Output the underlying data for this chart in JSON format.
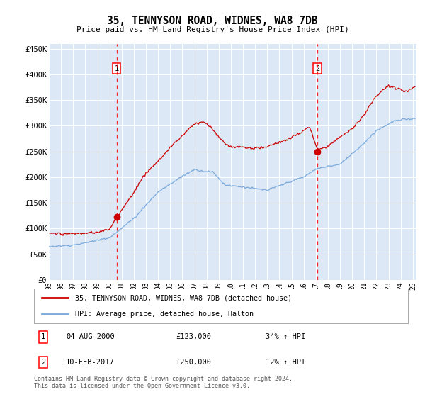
{
  "title": "35, TENNYSON ROAD, WIDNES, WA8 7DB",
  "subtitle": "Price paid vs. HM Land Registry's House Price Index (HPI)",
  "ylabel_ticks": [
    "£0",
    "£50K",
    "£100K",
    "£150K",
    "£200K",
    "£250K",
    "£300K",
    "£350K",
    "£400K",
    "£450K"
  ],
  "ytick_values": [
    0,
    50000,
    100000,
    150000,
    200000,
    250000,
    300000,
    350000,
    400000,
    450000
  ],
  "ylim": [
    0,
    460000
  ],
  "xlim_start": 1995.0,
  "xlim_end": 2025.3,
  "plot_bg": "#dce8f5",
  "red_color": "#cc0000",
  "blue_color": "#7aaadd",
  "legend_label_red": "35, TENNYSON ROAD, WIDNES, WA8 7DB (detached house)",
  "legend_label_blue": "HPI: Average price, detached house, Halton",
  "sale1_date": "04-AUG-2000",
  "sale1_price": "£123,000",
  "sale1_hpi": "34% ↑ HPI",
  "sale1_x": 2000.58,
  "sale1_y": 123000,
  "sale2_date": "10-FEB-2017",
  "sale2_price": "£250,000",
  "sale2_hpi": "12% ↑ HPI",
  "sale2_x": 2017.12,
  "sale2_y": 250000,
  "footer": "Contains HM Land Registry data © Crown copyright and database right 2024.\nThis data is licensed under the Open Government Licence v3.0.",
  "xtick_years": [
    1995,
    1996,
    1997,
    1998,
    1999,
    2000,
    2001,
    2002,
    2003,
    2004,
    2005,
    2006,
    2007,
    2008,
    2009,
    2010,
    2011,
    2012,
    2013,
    2014,
    2015,
    2016,
    2017,
    2018,
    2019,
    2020,
    2021,
    2022,
    2023,
    2024,
    2025
  ]
}
